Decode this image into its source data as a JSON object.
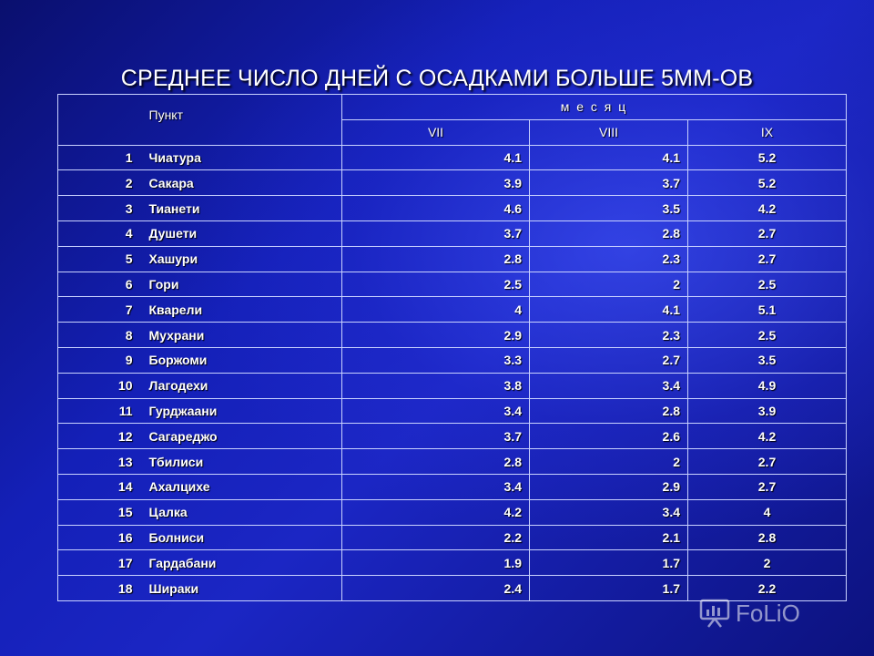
{
  "title": "СРЕДНЕЕ ЧИСЛО ДНЕЙ С ОСАДКАМИ БОЛЬШЕ 5ММ-ОВ",
  "table": {
    "header_point": "Пункт",
    "header_month": "м е с я ц",
    "months": [
      "VII",
      "VIII",
      "IX"
    ],
    "rows": [
      {
        "n": "1",
        "name": "Чиатура",
        "vii": "4.1",
        "viii": "4.1",
        "ix": "5.2"
      },
      {
        "n": "2",
        "name": "Сакара",
        "vii": "3.9",
        "viii": "3.7",
        "ix": "5.2"
      },
      {
        "n": "3",
        "name": "Тианети",
        "vii": "4.6",
        "viii": "3.5",
        "ix": "4.2"
      },
      {
        "n": "4",
        "name": "Душети",
        "vii": "3.7",
        "viii": "2.8",
        "ix": "2.7"
      },
      {
        "n": "5",
        "name": "Хашури",
        "vii": "2.8",
        "viii": "2.3",
        "ix": "2.7"
      },
      {
        "n": "6",
        "name": "Гори",
        "vii": "2.5",
        "viii": "2",
        "ix": "2.5"
      },
      {
        "n": "7",
        "name": "Кварели",
        "vii": "4",
        "viii": "4.1",
        "ix": "5.1"
      },
      {
        "n": "8",
        "name": "Мухрани",
        "vii": "2.9",
        "viii": "2.3",
        "ix": "2.5"
      },
      {
        "n": "9",
        "name": "Боржоми",
        "vii": "3.3",
        "viii": "2.7",
        "ix": "3.5"
      },
      {
        "n": "10",
        "name": "Лагодехи",
        "vii": "3.8",
        "viii": "3.4",
        "ix": "4.9"
      },
      {
        "n": "11",
        "name": "Гурджаани",
        "vii": "3.4",
        "viii": "2.8",
        "ix": "3.9"
      },
      {
        "n": "12",
        "name": "Сагареджо",
        "vii": "3.7",
        "viii": "2.6",
        "ix": "4.2"
      },
      {
        "n": "13",
        "name": "Тбилиси",
        "vii": "2.8",
        "viii": "2",
        "ix": "2.7"
      },
      {
        "n": "14",
        "name": "Ахалцихе",
        "vii": "3.4",
        "viii": "2.9",
        "ix": "2.7"
      },
      {
        "n": "15",
        "name": "Цалка",
        "vii": "4.2",
        "viii": "3.4",
        "ix": "4"
      },
      {
        "n": "16",
        "name": "Болниси",
        "vii": "2.2",
        "viii": "2.1",
        "ix": "2.8"
      },
      {
        "n": "17",
        "name": "Гардабани",
        "vii": "1.9",
        "viii": "1.7",
        "ix": "2"
      },
      {
        "n": "18",
        "name": "Шираки",
        "vii": "2.4",
        "viii": "1.7",
        "ix": "2.2"
      }
    ]
  },
  "watermark": {
    "text": "FoLiO",
    "icon": "presentation-icon"
  },
  "colors": {
    "background_dark": "#0a0f6e",
    "background_mid": "#1b26c4",
    "text": "#ffffff",
    "grid": "#c9d2ff"
  }
}
